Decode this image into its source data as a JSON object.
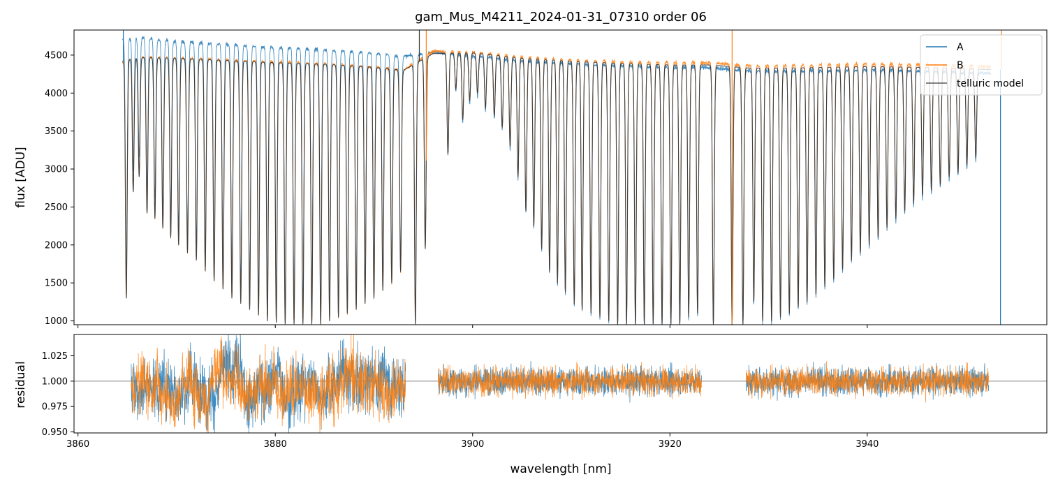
{
  "chart_data": [
    {
      "type": "line",
      "title": "gam_Mus_M4211_2024-01-31_07310  order 06",
      "xlabel": "",
      "ylabel": "flux [ADU]",
      "xlim": [
        3859.6,
        3958.2
      ],
      "ylim": [
        950,
        4830
      ],
      "y_ticks": [
        1000,
        1500,
        2000,
        2500,
        3000,
        3500,
        4000,
        4500
      ],
      "x_ticks": [
        3860,
        3880,
        3900,
        3920,
        3940
      ],
      "legend": {
        "location": "top-right",
        "entries": [
          "A",
          "B",
          "telluric model"
        ]
      },
      "continuum_model": {
        "x": [
          3864.5,
          3866,
          3870,
          3875,
          3880,
          3885,
          3890,
          3893,
          3896,
          3900,
          3905,
          3910,
          3915,
          3920,
          3924,
          3928,
          3932,
          3936,
          3940,
          3945,
          3950,
          3952.5
        ],
        "y": [
          4420,
          4470,
          4460,
          4430,
          4400,
          4380,
          4340,
          4300,
          4520,
          4530,
          4460,
          4420,
          4390,
          4370,
          4370,
          4330,
          4330,
          4340,
          4350,
          4340,
          4320,
          4310
        ]
      },
      "series": [
        {
          "name": "A",
          "color": "#1f77b4",
          "offset": [
            [
              3864.5,
              280
            ],
            [
              3870,
              220
            ],
            [
              3880,
              200
            ],
            [
              3893,
              180
            ],
            [
              3896,
              20
            ],
            [
              3900,
              -40
            ],
            [
              3920,
              -30
            ],
            [
              3928,
              -40
            ],
            [
              3952.5,
              -50
            ]
          ]
        },
        {
          "name": "B",
          "color": "#ff7f0e",
          "offset": [
            [
              3864.5,
              0
            ],
            [
              3880,
              10
            ],
            [
              3893,
              0
            ],
            [
              3896,
              30
            ],
            [
              3900,
              10
            ],
            [
              3920,
              30
            ],
            [
              3928,
              30
            ],
            [
              3952.5,
              40
            ]
          ]
        },
        {
          "name": "telluric model",
          "color": "#3a3a3a",
          "offset": [
            [
              3864.5,
              0
            ],
            [
              3952.5,
              0
            ]
          ]
        }
      ],
      "absorption_lines": [
        {
          "x": 3864.9,
          "min": 1300
        },
        {
          "x": 3865.6,
          "min": 2700
        },
        {
          "x": 3866.2,
          "min": 2900
        },
        {
          "x": 3867.0,
          "min": 2420
        },
        {
          "x": 3867.8,
          "min": 2350
        },
        {
          "x": 3868.6,
          "min": 2220
        },
        {
          "x": 3869.4,
          "min": 2100
        },
        {
          "x": 3870.2,
          "min": 2000
        },
        {
          "x": 3871.1,
          "min": 1900
        },
        {
          "x": 3872.0,
          "min": 1800
        },
        {
          "x": 3872.9,
          "min": 1660
        },
        {
          "x": 3873.8,
          "min": 1530
        },
        {
          "x": 3874.7,
          "min": 1420
        },
        {
          "x": 3875.6,
          "min": 1300
        },
        {
          "x": 3876.5,
          "min": 1230
        },
        {
          "x": 3877.4,
          "min": 1150
        },
        {
          "x": 3878.3,
          "min": 1080
        },
        {
          "x": 3879.2,
          "min": 1000
        },
        {
          "x": 3880.1,
          "min": 980
        },
        {
          "x": 3881.0,
          "min": 960
        },
        {
          "x": 3881.9,
          "min": 960
        },
        {
          "x": 3882.8,
          "min": 960
        },
        {
          "x": 3883.7,
          "min": 960
        },
        {
          "x": 3884.6,
          "min": 960
        },
        {
          "x": 3885.5,
          "min": 1000
        },
        {
          "x": 3886.4,
          "min": 1050
        },
        {
          "x": 3887.3,
          "min": 1100
        },
        {
          "x": 3888.2,
          "min": 1150
        },
        {
          "x": 3889.1,
          "min": 1230
        },
        {
          "x": 3890.0,
          "min": 1300
        },
        {
          "x": 3890.9,
          "min": 1400
        },
        {
          "x": 3891.8,
          "min": 1500
        },
        {
          "x": 3892.7,
          "min": 1650
        },
        {
          "x": 3894.2,
          "min": 960
        },
        {
          "x": 3895.2,
          "min": 1950
        },
        {
          "x": 3897.5,
          "min": 3200
        },
        {
          "x": 3898.3,
          "min": 4050
        },
        {
          "x": 3899.0,
          "min": 3650
        },
        {
          "x": 3899.7,
          "min": 3900
        },
        {
          "x": 3900.5,
          "min": 4000
        },
        {
          "x": 3901.3,
          "min": 3800
        },
        {
          "x": 3902.2,
          "min": 3700
        },
        {
          "x": 3903.0,
          "min": 3550
        },
        {
          "x": 3903.8,
          "min": 3300
        },
        {
          "x": 3904.6,
          "min": 2900
        },
        {
          "x": 3905.4,
          "min": 2450
        },
        {
          "x": 3906.2,
          "min": 2250
        },
        {
          "x": 3907.0,
          "min": 1950
        },
        {
          "x": 3907.8,
          "min": 1650
        },
        {
          "x": 3908.6,
          "min": 1500
        },
        {
          "x": 3909.4,
          "min": 1380
        },
        {
          "x": 3910.3,
          "min": 1220
        },
        {
          "x": 3911.1,
          "min": 1150
        },
        {
          "x": 3912.0,
          "min": 1100
        },
        {
          "x": 3912.9,
          "min": 1050
        },
        {
          "x": 3913.8,
          "min": 1000
        },
        {
          "x": 3914.7,
          "min": 960
        },
        {
          "x": 3915.6,
          "min": 960
        },
        {
          "x": 3916.5,
          "min": 960
        },
        {
          "x": 3917.4,
          "min": 960
        },
        {
          "x": 3918.3,
          "min": 960
        },
        {
          "x": 3919.2,
          "min": 960
        },
        {
          "x": 3920.1,
          "min": 960
        },
        {
          "x": 3921.0,
          "min": 960
        },
        {
          "x": 3921.9,
          "min": 1050
        },
        {
          "x": 3922.8,
          "min": 1100
        },
        {
          "x": 3924.4,
          "min": 960
        },
        {
          "x": 3926.3,
          "min": 960
        },
        {
          "x": 3927.4,
          "min": 960
        },
        {
          "x": 3928.5,
          "min": 1250
        },
        {
          "x": 3929.4,
          "min": 1000
        },
        {
          "x": 3930.3,
          "min": 1000
        },
        {
          "x": 3931.2,
          "min": 1050
        },
        {
          "x": 3932.1,
          "min": 1100
        },
        {
          "x": 3933.0,
          "min": 1180
        },
        {
          "x": 3933.9,
          "min": 1250
        },
        {
          "x": 3934.8,
          "min": 1350
        },
        {
          "x": 3935.7,
          "min": 1450
        },
        {
          "x": 3936.6,
          "min": 1550
        },
        {
          "x": 3937.5,
          "min": 1680
        },
        {
          "x": 3938.4,
          "min": 1800
        },
        {
          "x": 3939.3,
          "min": 1900
        },
        {
          "x": 3940.2,
          "min": 2000
        },
        {
          "x": 3941.1,
          "min": 2100
        },
        {
          "x": 3942.0,
          "min": 2230
        },
        {
          "x": 3942.9,
          "min": 2350
        },
        {
          "x": 3943.8,
          "min": 2450
        },
        {
          "x": 3944.7,
          "min": 2550
        },
        {
          "x": 3945.6,
          "min": 2650
        },
        {
          "x": 3946.5,
          "min": 2720
        },
        {
          "x": 3947.4,
          "min": 2800
        },
        {
          "x": 3948.3,
          "min": 2900
        },
        {
          "x": 3949.2,
          "min": 2950
        },
        {
          "x": 3950.1,
          "min": 3050
        },
        {
          "x": 3951.0,
          "min": 3150
        }
      ],
      "spikes": [
        {
          "x": 3864.6,
          "series": "A",
          "to": 4830
        },
        {
          "x": 3894.6,
          "series": "telluric model",
          "to": 4830
        },
        {
          "x": 3895.3,
          "series": "B",
          "to": 4830
        },
        {
          "x": 3926.3,
          "series": "B",
          "to": 4830
        },
        {
          "x": 3953.6,
          "series": "B",
          "to": 4830
        },
        {
          "x": 3953.5,
          "series": "A",
          "to": 950
        }
      ]
    },
    {
      "type": "line",
      "title": "",
      "xlabel": "wavelength [nm]",
      "ylabel": "residual",
      "xlim": [
        3859.6,
        3958.2
      ],
      "ylim": [
        0.949,
        1.046
      ],
      "y_ticks": [
        0.95,
        0.975,
        1.0,
        1.025
      ],
      "y_tick_labels": [
        "0.950",
        "0.975",
        "1.000",
        "1.025"
      ],
      "x_ticks": [
        3860,
        3880,
        3900,
        3920,
        3940
      ],
      "x_tick_labels": [
        "3860",
        "3880",
        "3900",
        "3920",
        "3940"
      ],
      "reference_line": 1.0,
      "segments": [
        {
          "x_start": 3865.4,
          "x_end": 3893.2,
          "noise": 0.014,
          "wander": 0.012
        },
        {
          "x_start": 3896.5,
          "x_end": 3923.2,
          "noise": 0.007,
          "wander": 0.0
        },
        {
          "x_start": 3927.7,
          "x_end": 3952.3,
          "noise": 0.007,
          "wander": 0.0
        }
      ],
      "series": [
        {
          "name": "A",
          "color": "#1f77b4"
        },
        {
          "name": "B",
          "color": "#ff7f0e"
        }
      ]
    }
  ]
}
